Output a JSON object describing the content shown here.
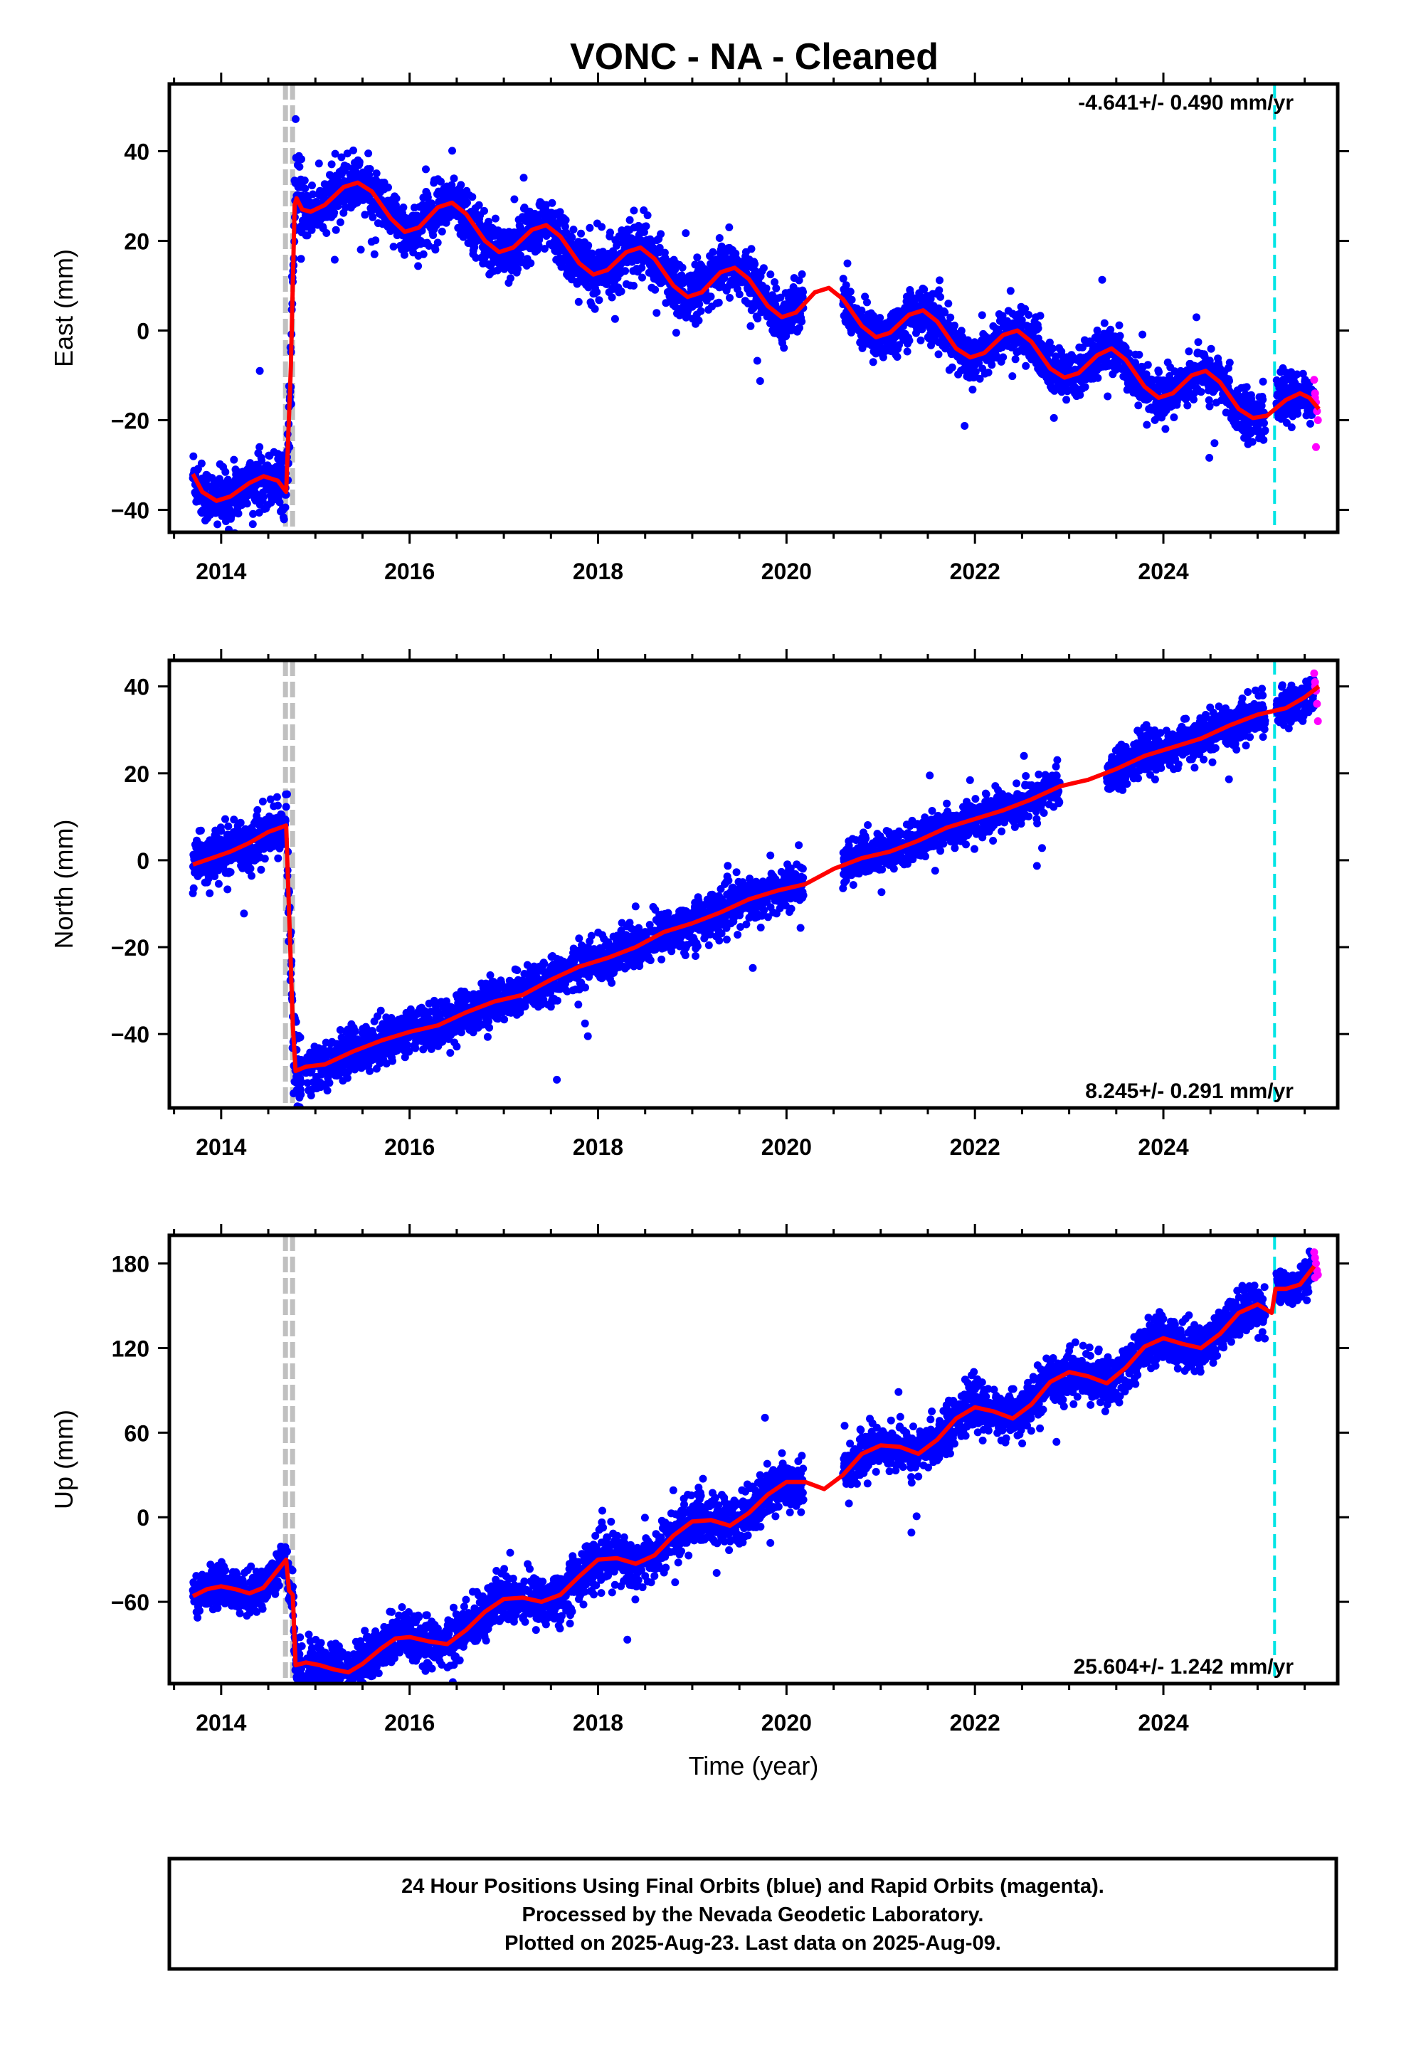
{
  "title": "VONC  - NA - Cleaned",
  "colors": {
    "final_points": "#0000ff",
    "rapid_points": "#ff00ff",
    "model_line": "#ff0000",
    "offset_marker": "#c0c0c0",
    "rapid_start_marker": "#00e5e5",
    "frame": "#000000"
  },
  "chart_data": [
    {
      "type": "scatter",
      "panel": "East",
      "ylabel": "East (mm)",
      "xlabel": "",
      "xlim": [
        2013.45,
        2025.85
      ],
      "ylim": [
        -45,
        55
      ],
      "yticks": [
        -40,
        -20,
        0,
        20,
        40
      ],
      "xticks": [
        2014,
        2016,
        2018,
        2020,
        2022,
        2024
      ],
      "xtick_labels": [
        "2014",
        "2016",
        "2018",
        "2020",
        "2022",
        "2024"
      ],
      "rate_text": "-4.641+/- 0.490 mm/yr",
      "rate_position": "top-right",
      "offset_epoch": 2014.72,
      "rapid_start_epoch": 2025.18,
      "model_knots": [
        [
          2013.7,
          -32
        ],
        [
          2013.8,
          -36
        ],
        [
          2013.95,
          -38
        ],
        [
          2014.1,
          -37
        ],
        [
          2014.3,
          -34
        ],
        [
          2014.45,
          -32.5
        ],
        [
          2014.6,
          -33.5
        ],
        [
          2014.69,
          -36
        ],
        [
          2014.74,
          -8
        ],
        [
          2014.78,
          28
        ],
        [
          2014.8,
          29.5
        ],
        [
          2014.86,
          27
        ],
        [
          2014.95,
          26.5
        ],
        [
          2015.1,
          28
        ],
        [
          2015.3,
          32
        ],
        [
          2015.45,
          33
        ],
        [
          2015.6,
          31
        ],
        [
          2015.8,
          25
        ],
        [
          2015.95,
          22
        ],
        [
          2016.1,
          23
        ],
        [
          2016.3,
          27.5
        ],
        [
          2016.45,
          28.5
        ],
        [
          2016.6,
          26
        ],
        [
          2016.8,
          20
        ],
        [
          2016.95,
          17.5
        ],
        [
          2017.1,
          18.5
        ],
        [
          2017.3,
          22.5
        ],
        [
          2017.45,
          23.5
        ],
        [
          2017.6,
          21
        ],
        [
          2017.8,
          15
        ],
        [
          2017.95,
          12.5
        ],
        [
          2018.1,
          13.5
        ],
        [
          2018.3,
          17.5
        ],
        [
          2018.45,
          18.5
        ],
        [
          2018.6,
          16
        ],
        [
          2018.8,
          10
        ],
        [
          2018.95,
          7.5
        ],
        [
          2019.1,
          8.5
        ],
        [
          2019.3,
          13
        ],
        [
          2019.45,
          14
        ],
        [
          2019.6,
          11.5
        ],
        [
          2019.8,
          5.5
        ],
        [
          2019.95,
          3
        ],
        [
          2020.1,
          4
        ],
        [
          2020.3,
          8.5
        ],
        [
          2020.45,
          9.5
        ],
        [
          2020.6,
          7
        ],
        [
          2020.8,
          1
        ],
        [
          2020.95,
          -1.5
        ],
        [
          2021.1,
          -0.5
        ],
        [
          2021.3,
          3.5
        ],
        [
          2021.45,
          4.5
        ],
        [
          2021.6,
          2
        ],
        [
          2021.8,
          -4
        ],
        [
          2021.95,
          -6
        ],
        [
          2022.1,
          -5
        ],
        [
          2022.3,
          -1
        ],
        [
          2022.45,
          0
        ],
        [
          2022.6,
          -2.5
        ],
        [
          2022.8,
          -8.5
        ],
        [
          2022.95,
          -10.5
        ],
        [
          2023.1,
          -9.5
        ],
        [
          2023.3,
          -5.5
        ],
        [
          2023.45,
          -4
        ],
        [
          2023.6,
          -6.5
        ],
        [
          2023.8,
          -12.5
        ],
        [
          2023.95,
          -15
        ],
        [
          2024.1,
          -14
        ],
        [
          2024.3,
          -10
        ],
        [
          2024.45,
          -9
        ],
        [
          2024.6,
          -11.5
        ],
        [
          2024.8,
          -17.5
        ],
        [
          2024.95,
          -19.5
        ],
        [
          2025.1,
          -19
        ],
        [
          2025.3,
          -15.5
        ],
        [
          2025.45,
          -14
        ],
        [
          2025.55,
          -15
        ],
        [
          2025.65,
          -17.5
        ]
      ],
      "data_segments": [
        [
          2013.7,
          2014.69,
          3.0
        ],
        [
          2014.7,
          2014.86,
          4.5
        ],
        [
          2014.86,
          2020.18,
          3.0
        ],
        [
          2020.6,
          2025.08,
          2.6
        ],
        [
          2025.2,
          2025.6,
          2.4
        ]
      ],
      "rapid_points": [
        [
          2025.6,
          -11
        ],
        [
          2025.61,
          -14
        ],
        [
          2025.62,
          -16
        ],
        [
          2025.63,
          -18
        ],
        [
          2025.64,
          -20
        ],
        [
          2025.62,
          -26
        ],
        [
          2025.61,
          -15
        ]
      ]
    },
    {
      "type": "scatter",
      "panel": "North",
      "ylabel": "North (mm)",
      "xlabel": "",
      "xlim": [
        2013.45,
        2025.85
      ],
      "ylim": [
        -57,
        46
      ],
      "yticks": [
        -40,
        -20,
        0,
        20,
        40
      ],
      "xticks": [
        2014,
        2016,
        2018,
        2020,
        2022,
        2024
      ],
      "xtick_labels": [
        "2014",
        "2016",
        "2018",
        "2020",
        "2022",
        "2024"
      ],
      "rate_text": "8.245+/- 0.291 mm/yr",
      "rate_position": "bottom-right",
      "offset_epoch": 2014.72,
      "rapid_start_epoch": 2025.18,
      "model_knots": [
        [
          2013.7,
          -1
        ],
        [
          2013.9,
          0.5
        ],
        [
          2014.1,
          2
        ],
        [
          2014.3,
          4
        ],
        [
          2014.5,
          6.5
        ],
        [
          2014.69,
          8
        ],
        [
          2014.73,
          -18
        ],
        [
          2014.76,
          -38
        ],
        [
          2014.79,
          -48.5
        ],
        [
          2014.9,
          -47.5
        ],
        [
          2015.1,
          -47
        ],
        [
          2015.4,
          -44
        ],
        [
          2015.7,
          -41.5
        ],
        [
          2016.0,
          -39.5
        ],
        [
          2016.3,
          -38
        ],
        [
          2016.6,
          -35
        ],
        [
          2016.9,
          -32.5
        ],
        [
          2017.2,
          -31
        ],
        [
          2017.5,
          -27.5
        ],
        [
          2017.8,
          -24.5
        ],
        [
          2018.1,
          -22.5
        ],
        [
          2018.4,
          -20
        ],
        [
          2018.7,
          -16.5
        ],
        [
          2019.0,
          -14.5
        ],
        [
          2019.3,
          -12
        ],
        [
          2019.6,
          -9
        ],
        [
          2019.9,
          -7
        ],
        [
          2020.2,
          -5.5
        ],
        [
          2020.5,
          -2
        ],
        [
          2020.8,
          0.5
        ],
        [
          2021.1,
          2
        ],
        [
          2021.4,
          4.5
        ],
        [
          2021.7,
          7.5
        ],
        [
          2022.0,
          9.5
        ],
        [
          2022.3,
          11.5
        ],
        [
          2022.6,
          14
        ],
        [
          2022.9,
          17
        ],
        [
          2023.2,
          18.5
        ],
        [
          2023.5,
          21
        ],
        [
          2023.8,
          24
        ],
        [
          2024.1,
          26
        ],
        [
          2024.4,
          28
        ],
        [
          2024.7,
          31
        ],
        [
          2025.0,
          33.5
        ],
        [
          2025.3,
          35
        ],
        [
          2025.5,
          37.5
        ],
        [
          2025.65,
          40
        ]
      ],
      "data_segments": [
        [
          2013.7,
          2014.69,
          2.8
        ],
        [
          2014.7,
          2014.86,
          5
        ],
        [
          2014.9,
          2020.18,
          2.6
        ],
        [
          2020.6,
          2022.9,
          2.2
        ],
        [
          2023.4,
          2025.08,
          2.2
        ],
        [
          2025.2,
          2025.6,
          2.0
        ]
      ],
      "rapid_points": [
        [
          2025.6,
          43
        ],
        [
          2025.61,
          41
        ],
        [
          2025.62,
          39
        ],
        [
          2025.63,
          36
        ],
        [
          2025.64,
          32
        ],
        [
          2025.61,
          40
        ]
      ]
    },
    {
      "type": "scatter",
      "panel": "Up",
      "ylabel": "Up (mm)",
      "xlabel": "Time (year)",
      "xlim": [
        2013.45,
        2025.85
      ],
      "ylim": [
        -118,
        200
      ],
      "yticks": [
        -60,
        0,
        60,
        120,
        180
      ],
      "xticks": [
        2014,
        2016,
        2018,
        2020,
        2022,
        2024
      ],
      "xtick_labels": [
        "2014",
        "2016",
        "2018",
        "2020",
        "2022",
        "2024"
      ],
      "rate_text": "25.604+/- 1.242 mm/yr",
      "rate_position": "bottom-right",
      "offset_epoch": 2014.72,
      "rapid_start_epoch": 2025.18,
      "model_knots": [
        [
          2013.7,
          -56
        ],
        [
          2013.85,
          -51
        ],
        [
          2014.0,
          -49
        ],
        [
          2014.15,
          -51
        ],
        [
          2014.3,
          -54
        ],
        [
          2014.45,
          -50
        ],
        [
          2014.69,
          -30
        ],
        [
          2014.72,
          -52
        ],
        [
          2014.76,
          -55
        ],
        [
          2014.79,
          -105
        ],
        [
          2014.9,
          -103
        ],
        [
          2015.05,
          -105
        ],
        [
          2015.2,
          -108
        ],
        [
          2015.35,
          -110
        ],
        [
          2015.5,
          -104
        ],
        [
          2015.7,
          -93
        ],
        [
          2015.85,
          -86
        ],
        [
          2016.0,
          -85
        ],
        [
          2016.2,
          -88
        ],
        [
          2016.4,
          -90
        ],
        [
          2016.6,
          -80
        ],
        [
          2016.8,
          -67
        ],
        [
          2017.0,
          -58
        ],
        [
          2017.2,
          -57
        ],
        [
          2017.4,
          -60
        ],
        [
          2017.6,
          -55
        ],
        [
          2017.8,
          -42
        ],
        [
          2018.0,
          -30
        ],
        [
          2018.2,
          -29
        ],
        [
          2018.4,
          -33
        ],
        [
          2018.6,
          -27
        ],
        [
          2018.8,
          -13
        ],
        [
          2019.0,
          -3
        ],
        [
          2019.2,
          -2
        ],
        [
          2019.4,
          -6
        ],
        [
          2019.6,
          3
        ],
        [
          2019.8,
          16
        ],
        [
          2020.0,
          25
        ],
        [
          2020.2,
          25
        ],
        [
          2020.4,
          20
        ],
        [
          2020.6,
          30
        ],
        [
          2020.8,
          45
        ],
        [
          2021.0,
          51
        ],
        [
          2021.2,
          50
        ],
        [
          2021.4,
          45
        ],
        [
          2021.6,
          55
        ],
        [
          2021.8,
          70
        ],
        [
          2022.0,
          78
        ],
        [
          2022.2,
          75
        ],
        [
          2022.4,
          70
        ],
        [
          2022.6,
          80
        ],
        [
          2022.8,
          96
        ],
        [
          2023.0,
          103
        ],
        [
          2023.2,
          100
        ],
        [
          2023.4,
          95
        ],
        [
          2023.6,
          106
        ],
        [
          2023.8,
          121
        ],
        [
          2024.0,
          127
        ],
        [
          2024.2,
          123
        ],
        [
          2024.4,
          120
        ],
        [
          2024.6,
          130
        ],
        [
          2024.8,
          145
        ],
        [
          2025.0,
          151
        ],
        [
          2025.15,
          145
        ],
        [
          2025.19,
          162
        ],
        [
          2025.3,
          162
        ],
        [
          2025.45,
          165
        ],
        [
          2025.6,
          178
        ]
      ],
      "data_segments": [
        [
          2013.7,
          2014.69,
          7
        ],
        [
          2014.7,
          2014.86,
          9
        ],
        [
          2014.9,
          2020.18,
          9
        ],
        [
          2020.6,
          2025.08,
          8
        ],
        [
          2025.2,
          2025.6,
          6
        ]
      ],
      "rapid_points": [
        [
          2025.6,
          188
        ],
        [
          2025.61,
          184
        ],
        [
          2025.62,
          180
        ],
        [
          2025.63,
          175
        ],
        [
          2025.64,
          172
        ],
        [
          2025.61,
          170
        ]
      ]
    }
  ],
  "caption": {
    "line1": "24 Hour Positions Using Final Orbits (blue) and Rapid Orbits (magenta).",
    "line2": "Processed by the Nevada Geodetic Laboratory.",
    "line3": "Plotted on 2025-Aug-23. Last data on 2025-Aug-09."
  }
}
